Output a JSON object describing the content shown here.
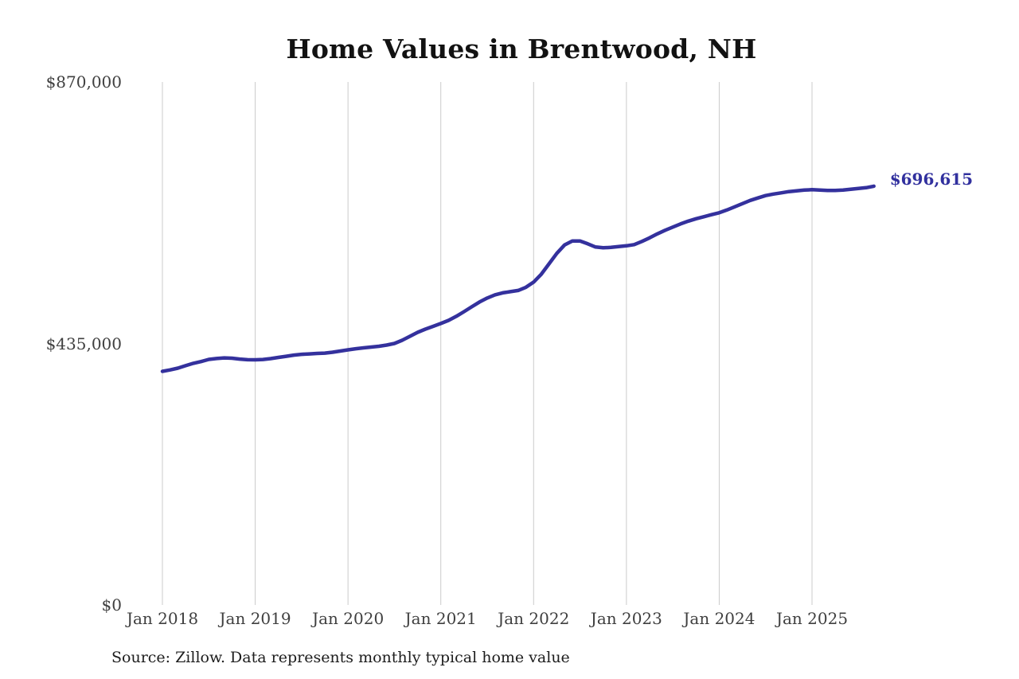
{
  "title": "Home Values in Brentwood, NH",
  "source_note": "Source: Zillow. Data represents monthly typical home value",
  "annotation": {
    "label": "$696,615"
  },
  "colors": {
    "line": "#34319d",
    "annotation_text": "#31309e",
    "gridline": "#cbcbcb",
    "axis_text": "#3f3f3f",
    "title_text": "#121212",
    "source_text": "#1d1d1d",
    "background": "#ffffff"
  },
  "y_axis": {
    "ticks": [
      {
        "label": "$870,000",
        "value": 870000
      },
      {
        "label": "$435,000",
        "value": 435000
      },
      {
        "label": "$0",
        "value": 0
      }
    ]
  },
  "x_axis": {
    "ticks": [
      {
        "label": "Jan 2018",
        "month_index": 0
      },
      {
        "label": "Jan 2019",
        "month_index": 12
      },
      {
        "label": "Jan 2020",
        "month_index": 24
      },
      {
        "label": "Jan 2021",
        "month_index": 36
      },
      {
        "label": "Jan 2022",
        "month_index": 48
      },
      {
        "label": "Jan 2023",
        "month_index": 60
      },
      {
        "label": "Jan 2024",
        "month_index": 72
      },
      {
        "label": "Jan 2025",
        "month_index": 84
      }
    ]
  },
  "chart_data": {
    "type": "line",
    "title": "Home Values in Brentwood, NH",
    "series_name": "Monthly typical home value (Zillow)",
    "ylim": [
      0,
      870000
    ],
    "grid": "vertical-only",
    "legend": "none",
    "last_value_label": "$696,615",
    "x": [
      "2018-01",
      "2018-02",
      "2018-03",
      "2018-04",
      "2018-05",
      "2018-06",
      "2018-07",
      "2018-08",
      "2018-09",
      "2018-10",
      "2018-11",
      "2018-12",
      "2019-01",
      "2019-02",
      "2019-03",
      "2019-04",
      "2019-05",
      "2019-06",
      "2019-07",
      "2019-08",
      "2019-09",
      "2019-10",
      "2019-11",
      "2019-12",
      "2020-01",
      "2020-02",
      "2020-03",
      "2020-04",
      "2020-05",
      "2020-06",
      "2020-07",
      "2020-08",
      "2020-09",
      "2020-10",
      "2020-11",
      "2020-12",
      "2021-01",
      "2021-02",
      "2021-03",
      "2021-04",
      "2021-05",
      "2021-06",
      "2021-07",
      "2021-08",
      "2021-09",
      "2021-10",
      "2021-11",
      "2021-12",
      "2022-01",
      "2022-02",
      "2022-03",
      "2022-04",
      "2022-05",
      "2022-06",
      "2022-07",
      "2022-08",
      "2022-09",
      "2022-10",
      "2022-11",
      "2022-12",
      "2023-01",
      "2023-02",
      "2023-03",
      "2023-04",
      "2023-05",
      "2023-06",
      "2023-07",
      "2023-08",
      "2023-09",
      "2023-10",
      "2023-11",
      "2023-12",
      "2024-01",
      "2024-02",
      "2024-03",
      "2024-04",
      "2024-05",
      "2024-06",
      "2024-07",
      "2024-08",
      "2024-09",
      "2024-10",
      "2024-11",
      "2024-12",
      "2025-01",
      "2025-02",
      "2025-03",
      "2025-04",
      "2025-05",
      "2025-06",
      "2025-07",
      "2025-08",
      "2025-09"
    ],
    "values": [
      388600,
      391000,
      394000,
      398000,
      402000,
      405000,
      408500,
      410000,
      411000,
      410500,
      409000,
      408000,
      407800,
      408400,
      409800,
      411800,
      413700,
      415700,
      417000,
      417700,
      418400,
      419000,
      420400,
      422400,
      424400,
      426300,
      427700,
      429000,
      430300,
      432300,
      435000,
      440300,
      446900,
      453500,
      458800,
      463500,
      468200,
      473400,
      480100,
      488000,
      496000,
      504000,
      510600,
      515900,
      519200,
      521200,
      523200,
      528500,
      537100,
      550400,
      567600,
      584900,
      598800,
      605400,
      605400,
      600800,
      595500,
      594200,
      594800,
      596100,
      597500,
      599400,
      604700,
      610700,
      617300,
      623300,
      628600,
      633900,
      638500,
      642500,
      645800,
      649200,
      652500,
      657100,
      662400,
      667700,
      673000,
      677000,
      681000,
      683600,
      685600,
      687600,
      688900,
      690200,
      690900,
      690200,
      689600,
      689600,
      690200,
      691500,
      692800,
      694200,
      696615
    ]
  }
}
